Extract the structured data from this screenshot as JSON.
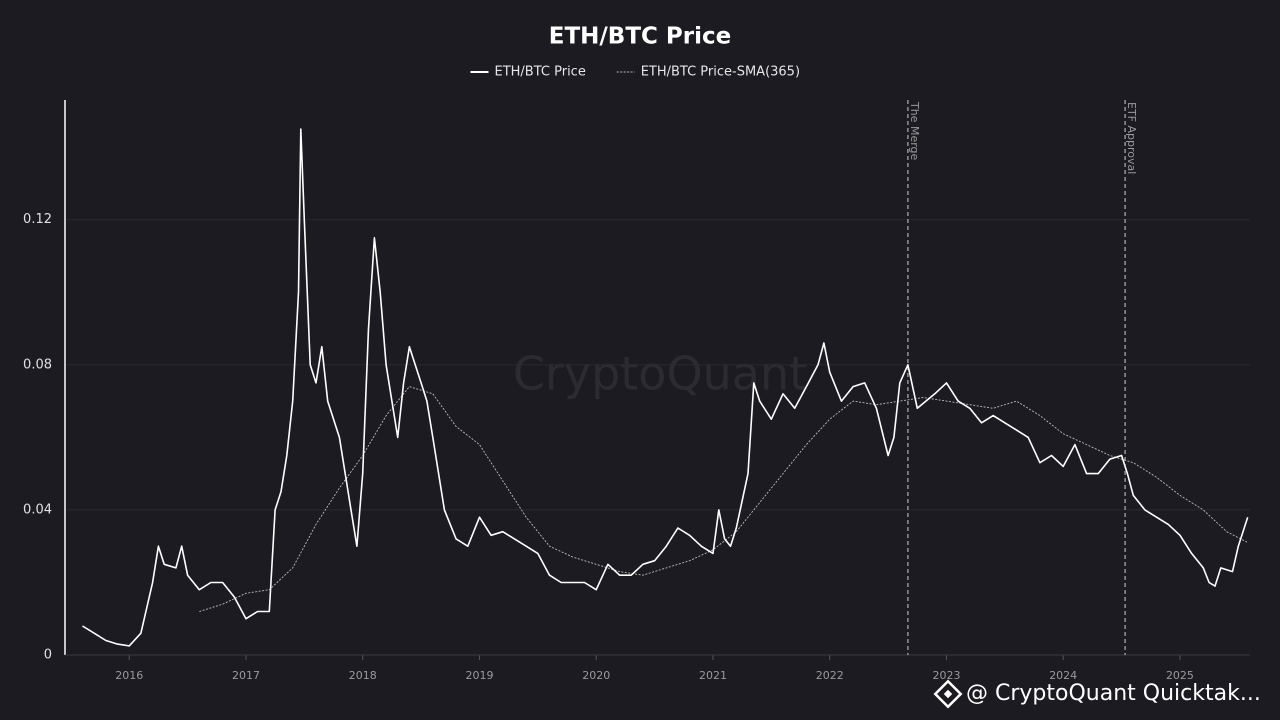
{
  "chart_data": {
    "type": "line",
    "title": "ETH/BTC Price",
    "watermark": "CryptoQuant",
    "footer": "@ CryptoQuant Quicktak...",
    "xlim": [
      2015.45,
      2025.6
    ],
    "xticks": [
      2016,
      2017,
      2018,
      2019,
      2020,
      2021,
      2022,
      2023,
      2024,
      2025
    ],
    "ylim": [
      0,
      0.153
    ],
    "yticks": [
      0,
      0.04,
      0.08,
      0.12
    ],
    "grid": true,
    "legend": "top",
    "annotations": [
      {
        "label": "The Merge",
        "x": 2022.67
      },
      {
        "label": "ETF Approval",
        "x": 2024.53
      }
    ],
    "series": [
      {
        "name": "ETH/BTC Price",
        "color": "#ffffff",
        "line_style": "solid",
        "x": [
          2015.6,
          2015.7,
          2015.8,
          2015.9,
          2016.0,
          2016.1,
          2016.2,
          2016.25,
          2016.3,
          2016.4,
          2016.45,
          2016.5,
          2016.6,
          2016.7,
          2016.8,
          2016.9,
          2017.0,
          2017.1,
          2017.2,
          2017.25,
          2017.3,
          2017.35,
          2017.4,
          2017.45,
          2017.47,
          2017.5,
          2017.55,
          2017.6,
          2017.65,
          2017.7,
          2017.8,
          2017.85,
          2017.9,
          2017.95,
          2018.0,
          2018.05,
          2018.1,
          2018.15,
          2018.2,
          2018.25,
          2018.3,
          2018.35,
          2018.4,
          2018.45,
          2018.5,
          2018.55,
          2018.6,
          2018.7,
          2018.8,
          2018.9,
          2019.0,
          2019.1,
          2019.2,
          2019.3,
          2019.4,
          2019.5,
          2019.6,
          2019.7,
          2019.8,
          2019.9,
          2020.0,
          2020.1,
          2020.2,
          2020.3,
          2020.4,
          2020.5,
          2020.6,
          2020.7,
          2020.8,
          2020.9,
          2021.0,
          2021.05,
          2021.1,
          2021.15,
          2021.2,
          2021.3,
          2021.35,
          2021.4,
          2021.5,
          2021.6,
          2021.7,
          2021.8,
          2021.9,
          2021.95,
          2022.0,
          2022.1,
          2022.2,
          2022.3,
          2022.4,
          2022.5,
          2022.55,
          2022.6,
          2022.67,
          2022.75,
          2022.9,
          2023.0,
          2023.1,
          2023.2,
          2023.3,
          2023.4,
          2023.5,
          2023.6,
          2023.7,
          2023.8,
          2023.9,
          2024.0,
          2024.1,
          2024.2,
          2024.3,
          2024.4,
          2024.5,
          2024.55,
          2024.6,
          2024.7,
          2024.8,
          2024.9,
          2025.0,
          2025.1,
          2025.2,
          2025.25,
          2025.3,
          2025.35,
          2025.45,
          2025.5,
          2025.58
        ],
        "values": [
          0.008,
          0.006,
          0.004,
          0.003,
          0.0025,
          0.006,
          0.02,
          0.03,
          0.025,
          0.024,
          0.03,
          0.022,
          0.018,
          0.02,
          0.02,
          0.016,
          0.01,
          0.012,
          0.012,
          0.04,
          0.045,
          0.055,
          0.07,
          0.1,
          0.145,
          0.12,
          0.08,
          0.075,
          0.085,
          0.07,
          0.06,
          0.05,
          0.04,
          0.03,
          0.05,
          0.09,
          0.115,
          0.1,
          0.08,
          0.07,
          0.06,
          0.075,
          0.085,
          0.08,
          0.075,
          0.07,
          0.06,
          0.04,
          0.032,
          0.03,
          0.038,
          0.033,
          0.034,
          0.032,
          0.03,
          0.028,
          0.022,
          0.02,
          0.02,
          0.02,
          0.018,
          0.025,
          0.022,
          0.022,
          0.025,
          0.026,
          0.03,
          0.035,
          0.033,
          0.03,
          0.028,
          0.04,
          0.032,
          0.03,
          0.035,
          0.05,
          0.075,
          0.07,
          0.065,
          0.072,
          0.068,
          0.074,
          0.08,
          0.086,
          0.078,
          0.07,
          0.074,
          0.075,
          0.068,
          0.055,
          0.06,
          0.075,
          0.08,
          0.068,
          0.072,
          0.075,
          0.07,
          0.068,
          0.064,
          0.066,
          0.064,
          0.062,
          0.06,
          0.053,
          0.055,
          0.052,
          0.058,
          0.05,
          0.05,
          0.054,
          0.055,
          0.05,
          0.044,
          0.04,
          0.038,
          0.036,
          0.033,
          0.028,
          0.024,
          0.02,
          0.019,
          0.024,
          0.023,
          0.03,
          0.038
        ]
      },
      {
        "name": "ETH/BTC Price-SMA(365)",
        "color": "#bdbdbd",
        "line_style": "dashed",
        "x": [
          2016.6,
          2016.8,
          2017.0,
          2017.2,
          2017.4,
          2017.6,
          2017.8,
          2018.0,
          2018.2,
          2018.4,
          2018.6,
          2018.8,
          2019.0,
          2019.2,
          2019.4,
          2019.6,
          2019.8,
          2020.0,
          2020.2,
          2020.4,
          2020.6,
          2020.8,
          2021.0,
          2021.2,
          2021.4,
          2021.6,
          2021.8,
          2022.0,
          2022.2,
          2022.4,
          2022.6,
          2022.8,
          2023.0,
          2023.2,
          2023.4,
          2023.6,
          2023.8,
          2024.0,
          2024.2,
          2024.4,
          2024.6,
          2024.8,
          2025.0,
          2025.2,
          2025.4,
          2025.58
        ],
        "values": [
          0.012,
          0.014,
          0.017,
          0.018,
          0.024,
          0.036,
          0.046,
          0.055,
          0.066,
          0.074,
          0.072,
          0.063,
          0.058,
          0.048,
          0.038,
          0.03,
          0.027,
          0.025,
          0.023,
          0.022,
          0.024,
          0.026,
          0.029,
          0.034,
          0.042,
          0.05,
          0.058,
          0.065,
          0.07,
          0.069,
          0.07,
          0.071,
          0.07,
          0.069,
          0.068,
          0.07,
          0.066,
          0.061,
          0.058,
          0.055,
          0.053,
          0.049,
          0.044,
          0.04,
          0.034,
          0.031
        ]
      }
    ]
  }
}
